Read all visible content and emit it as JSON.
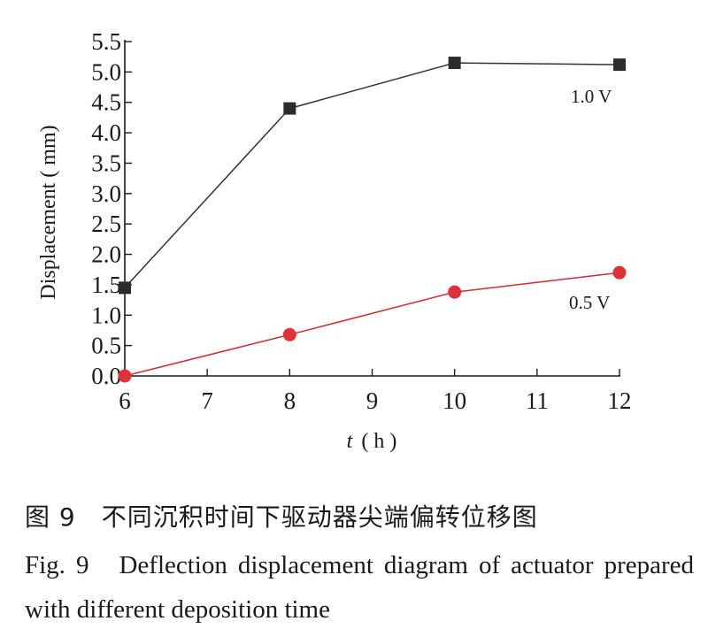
{
  "chart_data": {
    "type": "line",
    "xlabel_italic": "t",
    "xlabel_unit": "( h )",
    "ylabel": "Displacement ( mm)",
    "xlim": [
      6,
      12
    ],
    "ylim": [
      0,
      5.5
    ],
    "xticks": [
      "6",
      "7",
      "8",
      "9",
      "10",
      "11",
      "12"
    ],
    "yticks": [
      "0.0",
      "0.5",
      "1.0",
      "1.5",
      "2.0",
      "2.5",
      "3.0",
      "3.5",
      "4.0",
      "4.5",
      "5.0",
      "5.5"
    ],
    "grid": false,
    "series": [
      {
        "name": "1.0 V",
        "marker": "square",
        "color": "#2b2b2b",
        "line_color": "#333333",
        "points": [
          {
            "x": 6,
            "y": 1.45
          },
          {
            "x": 8,
            "y": 4.4
          },
          {
            "x": 10,
            "y": 5.15
          },
          {
            "x": 12,
            "y": 5.12
          }
        ]
      },
      {
        "name": "0.5 V",
        "marker": "circle",
        "color": "#e0303a",
        "line_color": "#d42a34",
        "points": [
          {
            "x": 6,
            "y": 0.0
          },
          {
            "x": 8,
            "y": 0.68
          },
          {
            "x": 10,
            "y": 1.38
          },
          {
            "x": 12,
            "y": 1.7
          }
        ]
      }
    ]
  },
  "caption": {
    "cn": "图 9　不同沉积时间下驱动器尖端偏转位移图",
    "en_figno": "Fig. 9",
    "en_text": "Deflection displacement diagram of actuator prepared with different deposition time"
  }
}
